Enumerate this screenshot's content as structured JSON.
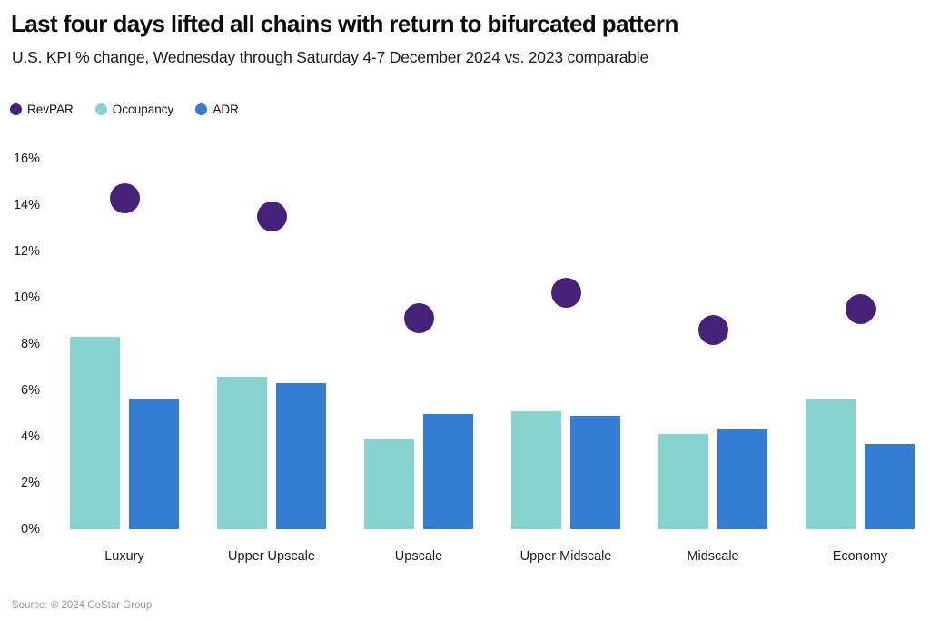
{
  "header": {
    "title": "Last four days lifted all chains with return to bifurcated pattern",
    "subtitle": "U.S. KPI % change, Wednesday through Saturday 4-7 December 2024 vs. 2023 comparable"
  },
  "legend": {
    "items": [
      {
        "label": "RevPAR",
        "color": "#46217a"
      },
      {
        "label": "Occupancy",
        "color": "#87d3d0"
      },
      {
        "label": "ADR",
        "color": "#337dd2"
      }
    ]
  },
  "footer": {
    "source": "Source: © 2024 CoStar Group"
  },
  "chart_data": {
    "type": "bar",
    "title": "Last four days lifted all chains with return to bifurcated pattern",
    "subtitle": "U.S. KPI % change, Wednesday through Saturday 4-7 December 2024 vs. 2023 comparable",
    "categories": [
      "Luxury",
      "Upper Upscale",
      "Upscale",
      "Upper Midscale",
      "Midscale",
      "Economy"
    ],
    "series": [
      {
        "name": "RevPAR",
        "mark": "scatter",
        "color": "#46217a",
        "values": [
          14.3,
          13.5,
          9.1,
          10.2,
          8.6,
          9.5
        ]
      },
      {
        "name": "Occupancy",
        "mark": "bar",
        "color": "#87d3d0",
        "values": [
          8.3,
          6.6,
          3.9,
          5.1,
          4.1,
          5.6
        ]
      },
      {
        "name": "ADR",
        "mark": "bar",
        "color": "#337dd2",
        "values": [
          5.6,
          6.3,
          5.0,
          4.9,
          4.3,
          3.7
        ]
      }
    ],
    "xlabel": "",
    "ylabel": "",
    "ylim": [
      0,
      16
    ],
    "yticks": [
      0,
      2,
      4,
      6,
      8,
      10,
      12,
      14,
      16
    ],
    "ytick_suffix": "%",
    "grid": false,
    "legend_position": "top-left",
    "source": "Source: © 2024 CoStar Group"
  }
}
